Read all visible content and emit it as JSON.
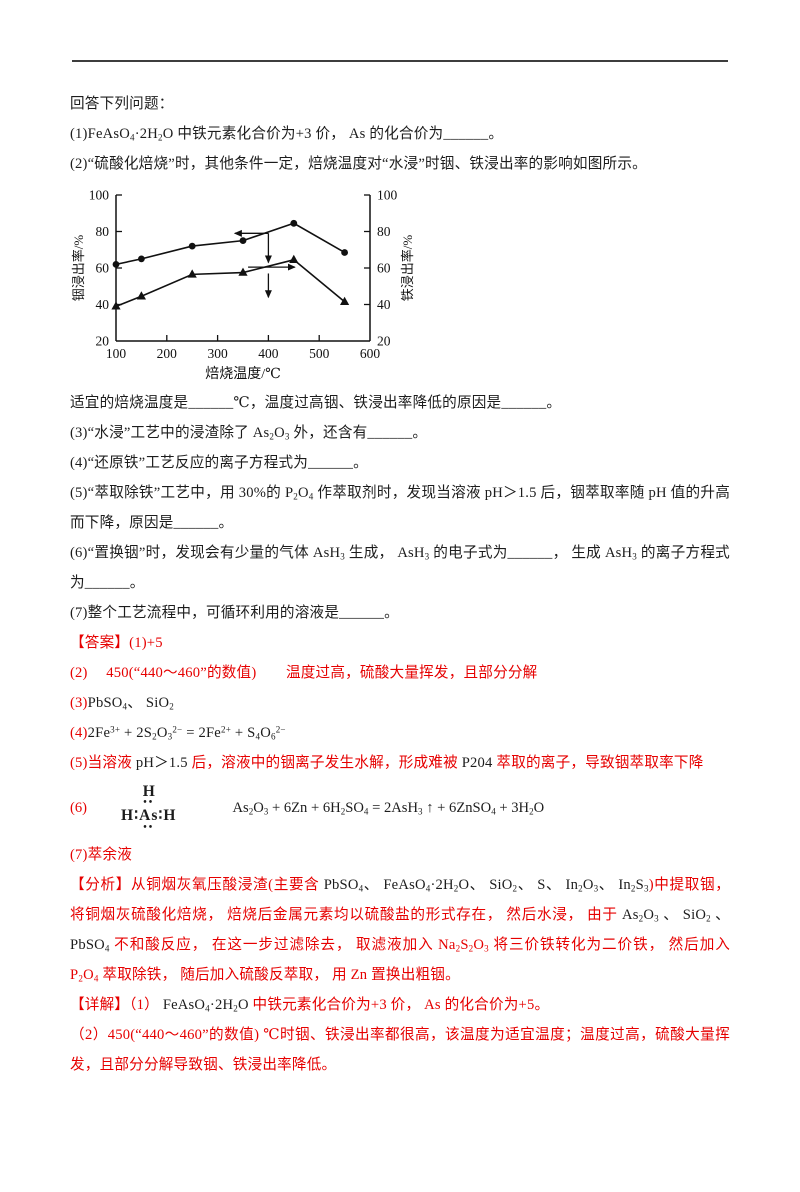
{
  "colors": {
    "answer_red": "#e60000",
    "ink": "#1c1c1c",
    "rule": "#3d3d3d"
  },
  "content": {
    "intro": [
      {
        "t": "回答下列问题：",
        "c": "k"
      }
    ],
    "q1": [
      {
        "t": "(1)",
        "c": "k"
      },
      {
        "t": "FeAsO~4~·2H~2~O",
        "c": "k"
      },
      {
        "t": " 中铁元素化合价为+3 价， As 的化合价为______。",
        "c": "k"
      }
    ],
    "q2": [
      {
        "t": "(2)“硫酸化焙烧”时，其他条件一定，焙烧温度对“水浸”时铟、铁浸出率的影响如图所示。",
        "c": "k"
      }
    ],
    "q2_followup": [
      {
        "t": "适宜的焙烧温度是______℃，温度过高铟、铁浸出率降低的原因是______。",
        "c": "k"
      }
    ],
    "q3": [
      {
        "t": "(3)“水浸”工艺中的浸渣除了 ",
        "c": "k"
      },
      {
        "t": "As~2~O~3~",
        "c": "k"
      },
      {
        "t": " 外，还含有______。",
        "c": "k"
      }
    ],
    "q4": [
      {
        "t": "(4)“还原铁”工艺反应的离子方程式为______。",
        "c": "k"
      }
    ],
    "q5": [
      {
        "t": "(5)“萃取除铁”工艺中，用 30%的 ",
        "c": "k"
      },
      {
        "t": "P~2~O~4~",
        "c": "k"
      },
      {
        "t": " 作萃取剂时，发现当溶液 pH＞1.5 后，铟萃取率随 pH 值的升高而下降，原因是______。",
        "c": "k"
      }
    ],
    "q6": [
      {
        "t": "(6)“置换铟”时，发现会有少量的气体 ",
        "c": "k"
      },
      {
        "t": "AsH~3~",
        "c": "k"
      },
      {
        "t": " 生成， ",
        "c": "k"
      },
      {
        "t": "AsH~3~",
        "c": "k"
      },
      {
        "t": " 的电子式为______， 生成 ",
        "c": "k"
      },
      {
        "t": "AsH~3~",
        "c": "k"
      },
      {
        "t": " 的离子方程式为______。",
        "c": "k"
      }
    ],
    "q7": [
      {
        "t": "(7)整个工艺流程中，可循环利用的溶液是______。",
        "c": "k"
      }
    ],
    "ans1": [
      {
        "t": "【答案】(1)+5",
        "c": "r"
      }
    ],
    "ans2": [
      {
        "t": "(2)　 450(“440～460”的数值)　　温度过高，硫酸大量挥发，且部分分解",
        "c": "r"
      }
    ],
    "ans3": [
      {
        "t": "(3)",
        "c": "r"
      },
      {
        "t": "PbSO~4~、 SiO~2~",
        "c": "k"
      }
    ],
    "ans4": [
      {
        "t": "(4)",
        "c": "r"
      },
      {
        "t": "2Fe^3+^ + 2S~2~O~3~^2−^ = 2Fe^2+^ + S~4~O~6~^2−^",
        "c": "k"
      }
    ],
    "ans5": [
      {
        "t": "(5)当溶液 ",
        "c": "r"
      },
      {
        "t": "pH＞1.5",
        "c": "k"
      },
      {
        "t": " 后，溶液中的铟离子发生水解，形成难被 ",
        "c": "r"
      },
      {
        "t": "P204",
        "c": "k"
      },
      {
        "t": " 萃取的离子，导致铟萃取率下降",
        "c": "r"
      }
    ],
    "ans6_label": [
      {
        "t": "(6)",
        "c": "r"
      }
    ],
    "ans6_eq": [
      {
        "t": "As~2~O~3~ + 6Zn + 6H~2~SO~4~ = 2AsH~3~ ↑ + 6ZnSO~4~ + 3H~2~O",
        "c": "k"
      }
    ],
    "ans7": [
      {
        "t": "(7)萃余液",
        "c": "r"
      }
    ],
    "analysis": [
      {
        "t": "【分析】从铜烟灰氧压酸浸渣(主要含 ",
        "c": "r"
      },
      {
        "t": "PbSO~4~、 FeAsO~4~·2H~2~O、 SiO~2~、 S、 In~2~O~3~、 In~2~S~3~",
        "c": "k"
      },
      {
        "t": ")中提取铟， 将铜烟灰硫酸化焙烧， 焙烧后金属元素均以硫酸盐的形式存在， 然后水浸， 由于 ",
        "c": "r"
      },
      {
        "t": "As~2~O~3~ 、 SiO~2~ 、 PbSO~4~",
        "c": "k"
      },
      {
        "t": " 不和酸反应， 在这一步过滤除去， 取滤液加入 Na~2~S~2~O~3~ 将三价铁转化为二价铁， 然后加入 P~2~O~4~ 萃取除铁， 随后加入硫酸反萃取， 用 Zn 置换出粗铟。",
        "c": "r"
      }
    ],
    "detail1": [
      {
        "t": "【详解】（1） ",
        "c": "r"
      },
      {
        "t": "FeAsO~4~·2H~2~O",
        "c": "k"
      },
      {
        "t": " 中铁元素化合价为+3 价， As 的化合价为+5。",
        "c": "r"
      }
    ],
    "detail2": [
      {
        "t": "（2）450(“440～460”的数值) ℃时铟、铁浸出率都很高，该温度为适宜温度；温度过高，硫酸大量挥发，且部分分解导致铟、铁浸出率降低。",
        "c": "r"
      }
    ]
  },
  "lewis": {
    "top": "H",
    "bond_pair_top": "••",
    "h_left": "H",
    "bond_left": "∶",
    "as": "As",
    "bond_right": "∶",
    "h_right": "H",
    "lone_pair_bottom": "••"
  },
  "chart_data": {
    "type": "line",
    "title": "",
    "xlabel": "焙烧温度/℃",
    "ylabel_left": "铟浸出率/%",
    "ylabel_right": "铁浸出率/%",
    "xlim": [
      100,
      600
    ],
    "ylim": [
      20,
      100
    ],
    "xticks": [
      100,
      200,
      300,
      400,
      500,
      600
    ],
    "yticks": [
      20,
      40,
      60,
      80,
      100
    ],
    "grid": false,
    "legend": "none",
    "series": [
      {
        "name": "铟浸出率",
        "marker": "circle",
        "axis": "left",
        "x": [
          100,
          150,
          250,
          350,
          450,
          550
        ],
        "y": [
          62,
          65,
          72,
          75,
          84.5,
          68.5
        ]
      },
      {
        "name": "铁浸出率",
        "marker": "triangle",
        "axis": "right",
        "x": [
          100,
          150,
          250,
          350,
          450,
          550
        ],
        "y": [
          39,
          44.5,
          56.5,
          57.5,
          64.5,
          41.5
        ]
      }
    ],
    "annotations": [
      {
        "type": "arrow",
        "from": [
          400,
          79
        ],
        "to": [
          334,
          79
        ]
      },
      {
        "type": "arrow",
        "from": [
          400,
          79
        ],
        "to": [
          400,
          63
        ]
      },
      {
        "type": "arrow",
        "from": [
          360,
          60.5
        ],
        "to": [
          452,
          60.5
        ]
      },
      {
        "type": "arrow",
        "from": [
          400,
          57
        ],
        "to": [
          400,
          44
        ]
      }
    ]
  }
}
